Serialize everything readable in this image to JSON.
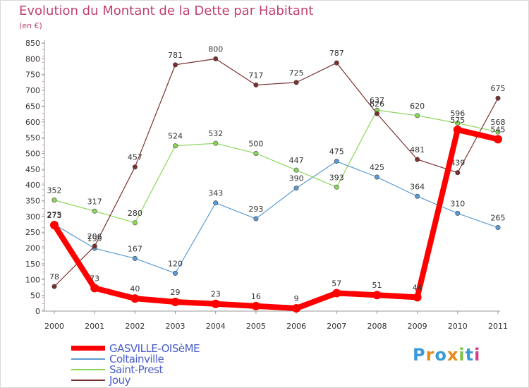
{
  "title": "Evolution du Montant de la Dette par Habitant",
  "unit": "(en €)",
  "logo": {
    "text": "Proxiti",
    "colors": [
      "#3b9ad9",
      "#e8891a",
      "#3b9ad9",
      "#e8891a",
      "#7cc242",
      "#3b9ad9",
      "#d93b8a"
    ]
  },
  "chart_data": {
    "type": "line",
    "title": "Evolution du Montant de la Dette par Habitant",
    "ylabel": "(en €)",
    "xlabel": "",
    "x": [
      "2000",
      "2001",
      "2002",
      "2003",
      "2004",
      "2005",
      "2006",
      "2007",
      "2008",
      "2009",
      "2010",
      "2011"
    ],
    "yticks": [
      0,
      50,
      100,
      150,
      200,
      250,
      300,
      350,
      400,
      450,
      500,
      550,
      600,
      650,
      700,
      750,
      800,
      850
    ],
    "ylim": [
      0,
      850
    ],
    "grid": false,
    "legend_placement": "bottom-left",
    "series": [
      {
        "name": "GASVILLE-OISèME",
        "color": "#ff0000",
        "values": [
          273,
          73,
          40,
          29,
          23,
          16,
          9,
          57,
          51,
          44,
          575,
          545
        ],
        "thick": true
      },
      {
        "name": "Coltainville",
        "color": "#5b9bd5",
        "values": [
          275,
          199,
          167,
          120,
          343,
          293,
          390,
          475,
          425,
          364,
          310,
          265
        ],
        "thick": false
      },
      {
        "name": "Saint-Prest",
        "color": "#8bd65a",
        "values": [
          352,
          317,
          280,
          524,
          532,
          500,
          447,
          393,
          637,
          620,
          596,
          568
        ],
        "thick": false
      },
      {
        "name": "Jouy",
        "color": "#7a3030",
        "values": [
          78,
          206,
          457,
          781,
          800,
          717,
          725,
          787,
          626,
          481,
          439,
          675
        ],
        "thick": false
      }
    ]
  }
}
